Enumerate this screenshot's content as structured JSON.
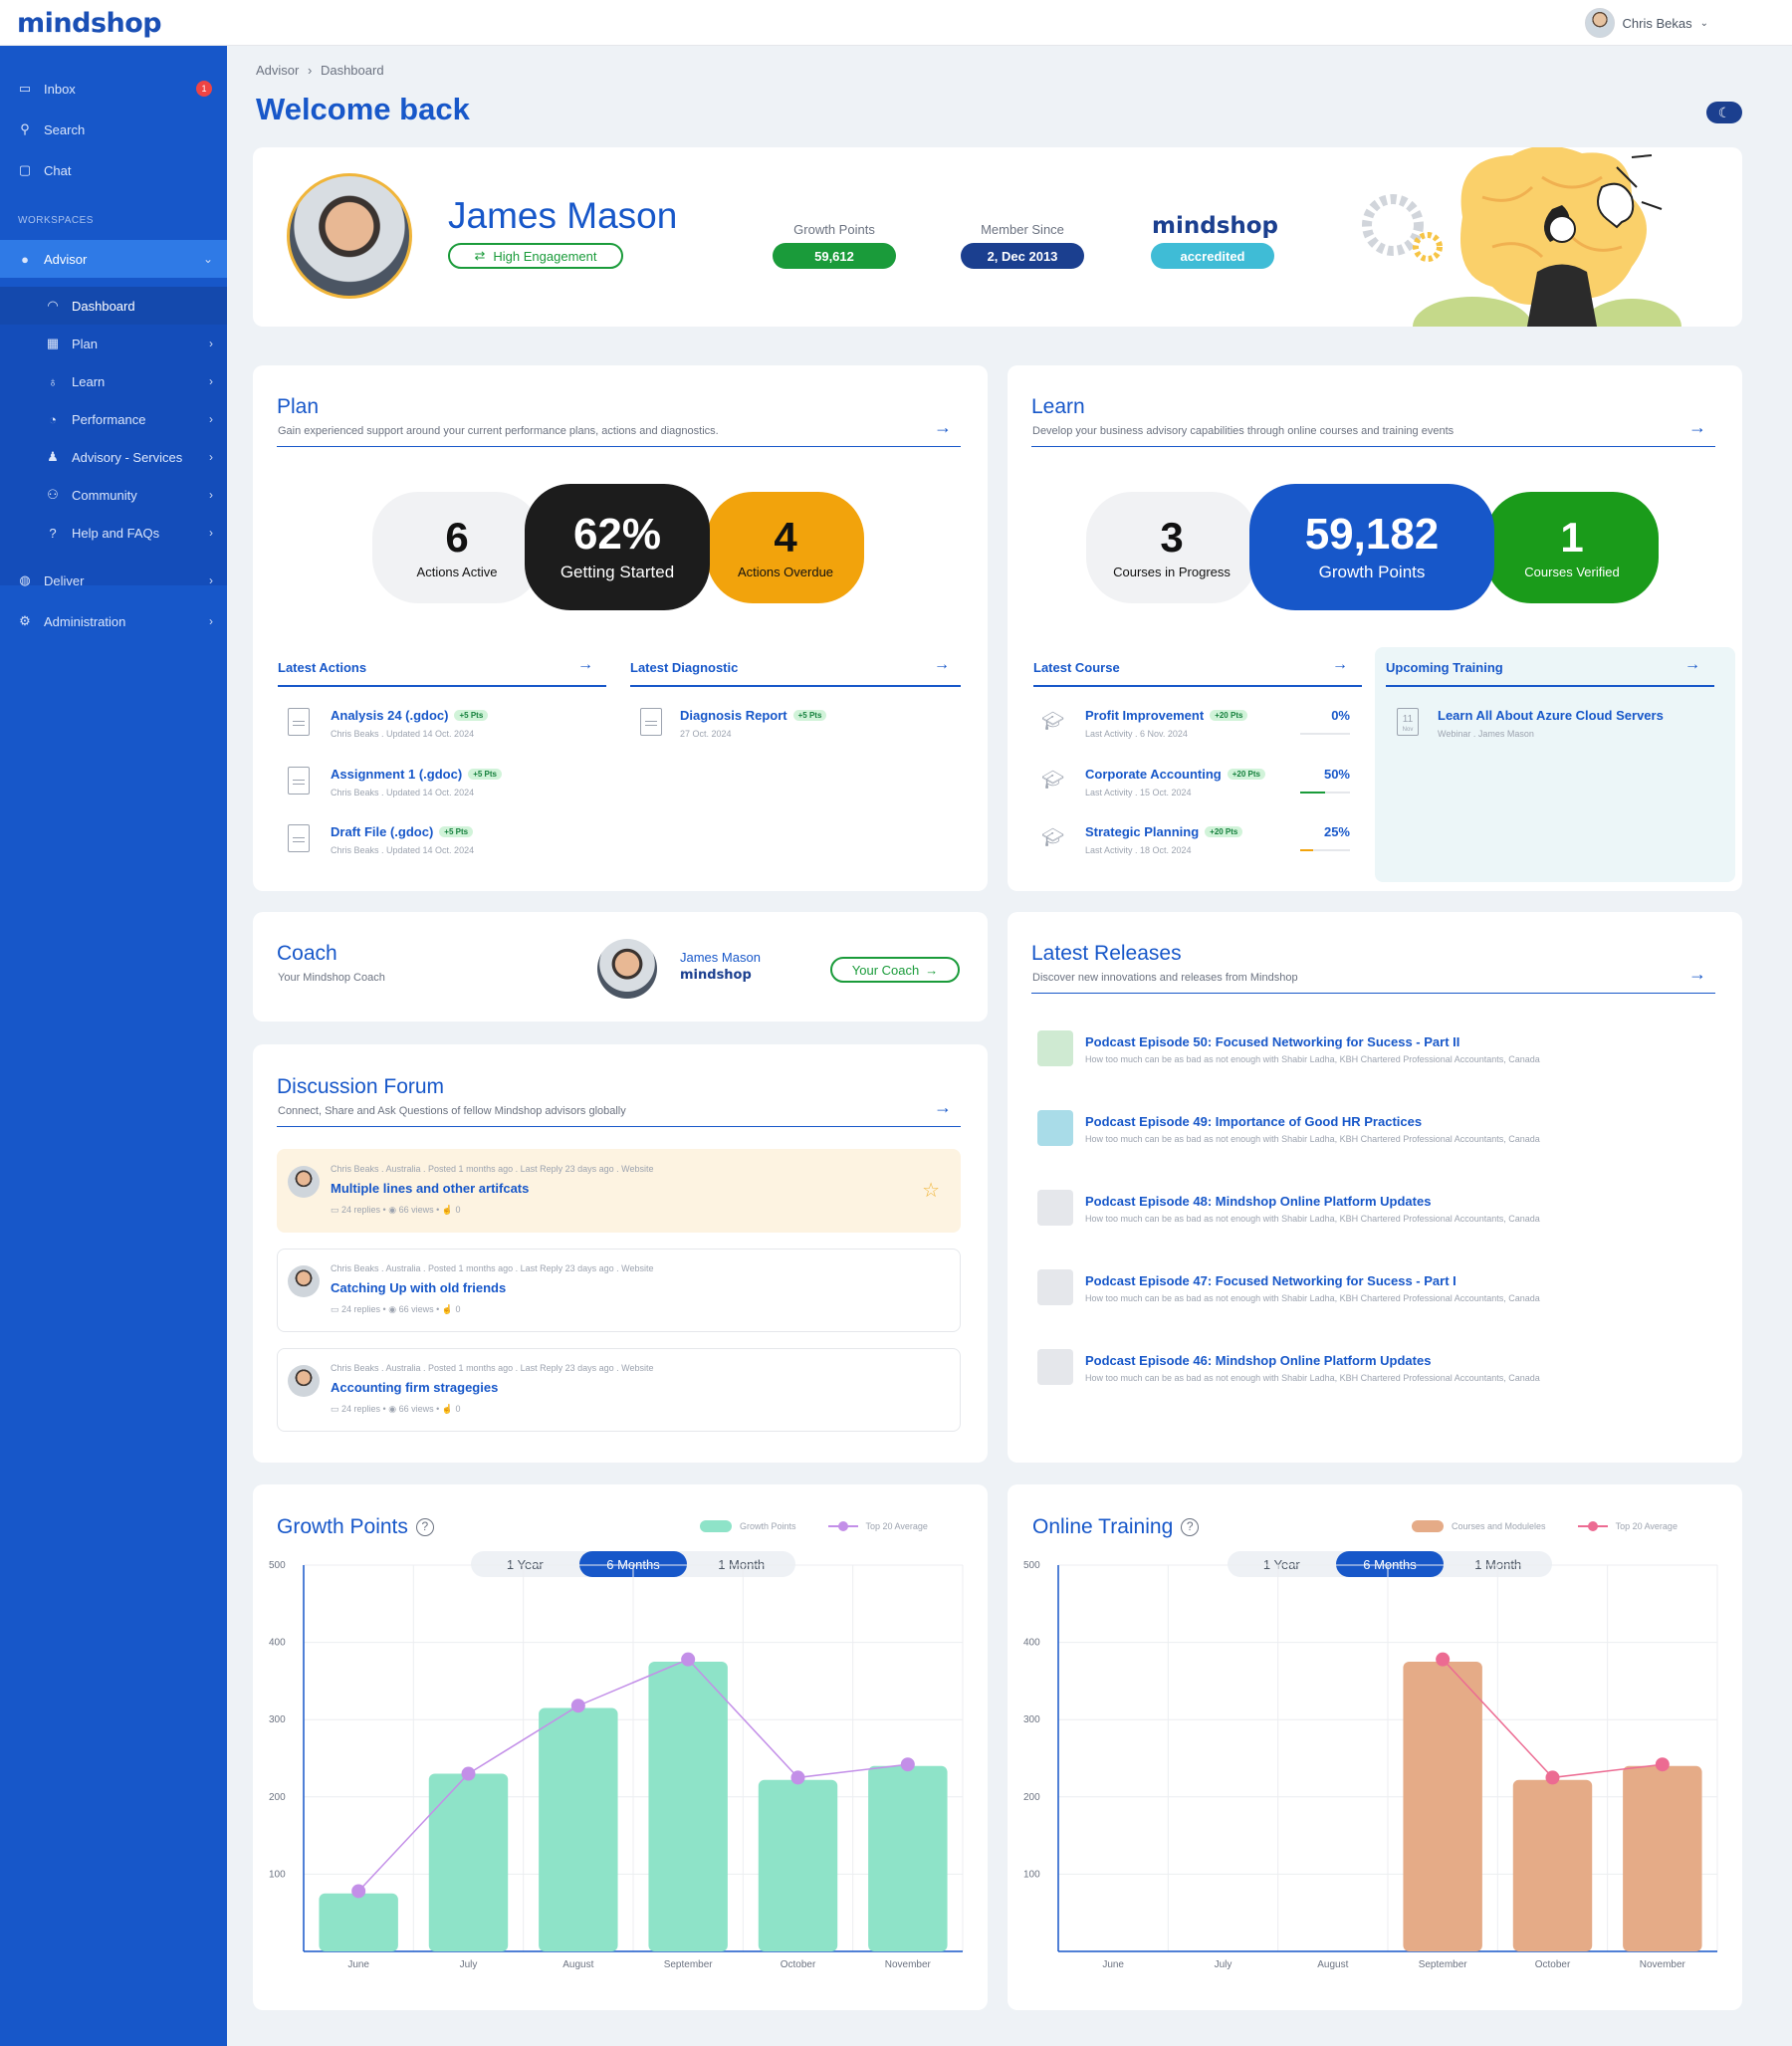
{
  "app": {
    "logo": "mindshop",
    "user_name": "Chris Bekas"
  },
  "sidebar": {
    "inbox": {
      "label": "Inbox",
      "badge": "1"
    },
    "search": {
      "label": "Search"
    },
    "chat": {
      "label": "Chat"
    },
    "workspaces_label": "WORKSPACES",
    "advisor": {
      "label": "Advisor"
    },
    "sub": [
      {
        "label": "Dashboard"
      },
      {
        "label": "Plan"
      },
      {
        "label": "Learn"
      },
      {
        "label": "Performance"
      },
      {
        "label": "Advisory - Services"
      },
      {
        "label": "Community"
      },
      {
        "label": "Help and FAQs"
      }
    ],
    "deliver": {
      "label": "Deliver"
    },
    "administration": {
      "label": "Administration"
    }
  },
  "breadcrumb": {
    "root": "Advisor",
    "sep": "›",
    "current": "Dashboard"
  },
  "page_title": "Welcome back",
  "profile": {
    "name": "James Mason",
    "engagement": "High Engagement",
    "growth_points_label": "Growth Points",
    "growth_points": "59,612",
    "member_since_label": "Member Since",
    "member_since": "2, Dec 2013",
    "brand": "mindshop",
    "accredited": "accredited",
    "colors": {
      "green": "#1a9b3a",
      "navy": "#1b3f8f",
      "teal": "#3fbcd6"
    }
  },
  "plan": {
    "title": "Plan",
    "subtitle": "Gain experienced support around your current performance plans, actions and diagnostics.",
    "stats": [
      {
        "value": "6",
        "label": "Actions Active"
      },
      {
        "value": "62%",
        "label": "Getting Started"
      },
      {
        "value": "4",
        "label": "Actions Overdue"
      }
    ],
    "latest_actions_label": "Latest Actions",
    "latest_diagnostic_label": "Latest Diagnostic",
    "actions": [
      {
        "title": "Analysis 24 (.gdoc)",
        "pts": "+5 Pts",
        "meta": "Chris Beaks . Updated 14 Oct. 2024"
      },
      {
        "title": "Assignment 1 (.gdoc)",
        "pts": "+5 Pts",
        "meta": "Chris Beaks . Updated 14 Oct. 2024"
      },
      {
        "title": "Draft File (.gdoc)",
        "pts": "+5 Pts",
        "meta": "Chris Beaks . Updated 14 Oct. 2024"
      }
    ],
    "diagnostic": {
      "title": "Diagnosis Report",
      "pts": "+5 Pts",
      "meta": "27 Oct. 2024"
    }
  },
  "learn": {
    "title": "Learn",
    "subtitle": "Develop your business advisory capabilities through online courses and training events",
    "stats": [
      {
        "value": "3",
        "label": "Courses in Progress"
      },
      {
        "value": "59,182",
        "label": "Growth Points"
      },
      {
        "value": "1",
        "label": "Courses Verified"
      }
    ],
    "latest_course_label": "Latest Course",
    "upcoming_training_label": "Upcoming Training",
    "courses": [
      {
        "title": "Profit Improvement",
        "pts": "+20 Pts",
        "meta": "Last Activity . 6 Nov. 2024",
        "pct": "0%",
        "progress": 0
      },
      {
        "title": "Corporate Accounting",
        "pts": "+20 Pts",
        "meta": "Last Activity . 15 Oct. 2024",
        "pct": "50%",
        "progress": 50
      },
      {
        "title": "Strategic Planning",
        "pts": "+20 Pts",
        "meta": "Last Activity . 18 Oct. 2024",
        "pct": "25%",
        "progress": 25
      }
    ],
    "training": {
      "day": "11",
      "month": "Nov",
      "title": "Learn All About Azure Cloud Servers",
      "meta": "Webinar . James Mason"
    }
  },
  "coach": {
    "title": "Coach",
    "subtitle": "Your Mindshop Coach",
    "name": "James Mason",
    "brand": "mindshop",
    "button": "Your Coach"
  },
  "forum": {
    "title": "Discussion Forum",
    "subtitle": "Connect, Share and Ask Questions of fellow Mindshop advisors globally",
    "posts": [
      {
        "meta": "Chris Beaks . Australia . Posted 1 months ago . Last Reply 23 days ago . Website",
        "title": "Multiple lines and other artifcats",
        "replies": "24 replies",
        "views": "66 views",
        "likes": "0"
      },
      {
        "meta": "Chris Beaks . Australia . Posted 1 months ago . Last Reply 23 days ago . Website",
        "title": "Catching Up with old friends",
        "replies": "24 replies",
        "views": "66 views",
        "likes": "0"
      },
      {
        "meta": "Chris Beaks . Australia . Posted 1 months ago . Last Reply 23 days ago . Website",
        "title": "Accounting firm stragegies",
        "replies": "24 replies",
        "views": "66 views",
        "likes": "0"
      }
    ]
  },
  "releases": {
    "title": "Latest Releases",
    "subtitle": "Discover new innovations and releases from Mindshop",
    "items": [
      {
        "title": "Podcast Episode 50: Focused Networking for Sucess - Part II",
        "meta": "How too much can be as bad as not enough with Shabir Ladha, KBH Chartered Professional Accountants, Canada"
      },
      {
        "title": "Podcast Episode 49: Importance of Good HR Practices",
        "meta": "How too much can be as bad as not enough with Shabir Ladha, KBH Chartered Professional Accountants, Canada"
      },
      {
        "title": "Podcast Episode 48: Mindshop Online Platform Updates",
        "meta": "How too much can be as bad as not enough with Shabir Ladha, KBH Chartered Professional Accountants, Canada"
      },
      {
        "title": "Podcast Episode 47: Focused Networking for Sucess - Part I",
        "meta": "How too much can be as bad as not enough with Shabir Ladha, KBH Chartered Professional Accountants, Canada"
      },
      {
        "title": "Podcast Episode 46: Mindshop Online Platform Updates",
        "meta": "How too much can be as bad as not enough with Shabir Ladha, KBH Chartered Professional Accountants, Canada"
      }
    ]
  },
  "ranges": [
    "1 Year",
    "6 Months",
    "1 Month"
  ],
  "chart_data": [
    {
      "type": "bar",
      "title": "Growth Points",
      "categories": [
        "June",
        "July",
        "August",
        "September",
        "October",
        "November"
      ],
      "ylim": [
        0,
        500
      ],
      "yticks": [
        100,
        200,
        300,
        400,
        500
      ],
      "grid": true,
      "legend_position": "top-right",
      "series": [
        {
          "name": "Growth Points",
          "type": "bar",
          "color": "#8ee3c8",
          "values": [
            75,
            230,
            315,
            375,
            222,
            240
          ]
        },
        {
          "name": "Top 20 Average",
          "type": "line",
          "color": "#c38fe8",
          "values": [
            78,
            230,
            318,
            378,
            225,
            242
          ]
        }
      ]
    },
    {
      "type": "bar",
      "title": "Online Training",
      "categories": [
        "June",
        "July",
        "August",
        "September",
        "October",
        "November"
      ],
      "ylim": [
        0,
        500
      ],
      "yticks": [
        100,
        200,
        300,
        400,
        500
      ],
      "grid": true,
      "legend_position": "top-right",
      "series": [
        {
          "name": "Courses and Moduleles",
          "type": "bar",
          "color": "#e5ab87",
          "values": [
            0,
            0,
            0,
            375,
            222,
            240
          ]
        },
        {
          "name": "Top 20 Average",
          "type": "line",
          "color": "#ec6b92",
          "values": [
            null,
            null,
            null,
            378,
            225,
            242
          ]
        }
      ]
    }
  ]
}
